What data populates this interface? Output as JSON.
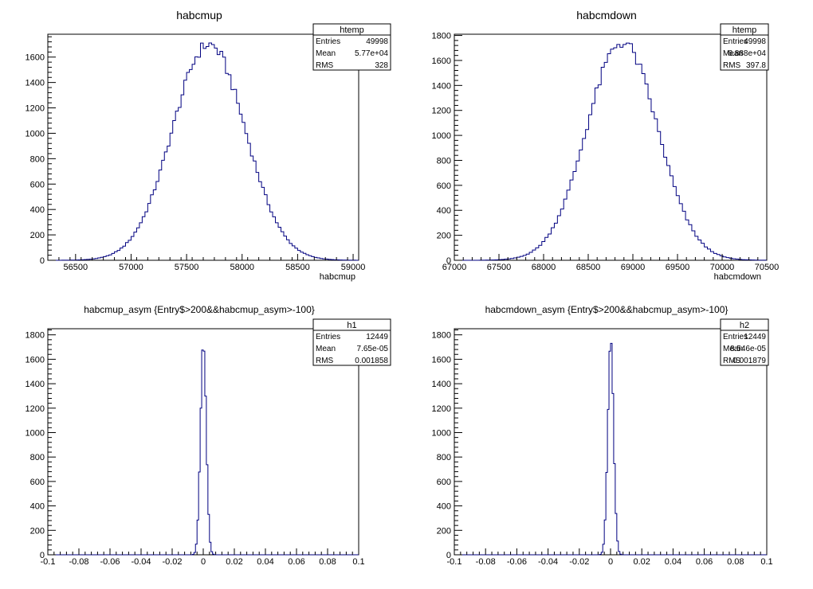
{
  "canvas": {
    "background": "#ffffff",
    "line_color": "#000080",
    "frame_color": "#000000"
  },
  "chart_data": [
    {
      "type": "histogram",
      "title": "habcmup",
      "xlabel": "habcmup",
      "ylabel": "",
      "xlim": [
        56250,
        59050
      ],
      "ylim": [
        0,
        1780
      ],
      "xticks": [
        56500,
        57000,
        57500,
        58000,
        58500,
        59000
      ],
      "xtick_labels": [
        "56500",
        "57000",
        "57500",
        "58000",
        "58500",
        "59000"
      ],
      "xminor_step": 100,
      "yticks": [
        0,
        200,
        400,
        600,
        800,
        1000,
        1200,
        1400,
        1600
      ],
      "ytick_labels": [
        "0",
        "200",
        "400",
        "600",
        "800",
        "1000",
        "1200",
        "1400",
        "1600"
      ],
      "yminor_step": 40,
      "bins": {
        "mean": 57700,
        "sigma": 328,
        "peak": 1700,
        "bin_width": 25
      },
      "stats": {
        "name": "htemp",
        "rows": [
          {
            "label": "Entries",
            "value": "49998"
          },
          {
            "label": "Mean",
            "value": "5.77e+04"
          },
          {
            "label": "RMS",
            "value": "328"
          }
        ]
      }
    },
    {
      "type": "histogram",
      "title": "habcmdown",
      "xlabel": "habcmdown",
      "ylabel": "",
      "xlim": [
        67000,
        70500
      ],
      "ylim": [
        0,
        1810
      ],
      "xticks": [
        67000,
        67500,
        68000,
        68500,
        69000,
        69500,
        70000,
        70500
      ],
      "xtick_labels": [
        "67000",
        "67500",
        "68000",
        "68500",
        "69000",
        "69500",
        "70000",
        "70500"
      ],
      "xminor_step": 100,
      "yticks": [
        0,
        200,
        400,
        600,
        800,
        1000,
        1200,
        1400,
        1600,
        1800
      ],
      "ytick_labels": [
        "0",
        "200",
        "400",
        "600",
        "800",
        "1000",
        "1200",
        "1400",
        "1600",
        "1800"
      ],
      "yminor_step": 40,
      "bins": {
        "mean": 68880,
        "sigma": 397.8,
        "peak": 1745,
        "bin_width": 35
      },
      "stats": {
        "name": "htemp",
        "rows": [
          {
            "label": "Entries",
            "value": "49998"
          },
          {
            "label": "Mean",
            "value": "6.888e+04"
          },
          {
            "label": "RMS",
            "value": "397.8"
          }
        ]
      }
    },
    {
      "type": "histogram",
      "title": "habcmup_asym {Entry$>200&&habcmup_asym>-100}",
      "xlabel": "",
      "ylabel": "",
      "xlim": [
        -0.1,
        0.1
      ],
      "ylim": [
        0,
        1850
      ],
      "xticks": [
        -0.1,
        -0.08,
        -0.06,
        -0.04,
        -0.02,
        0,
        0.02,
        0.04,
        0.06,
        0.08,
        0.1
      ],
      "xtick_labels": [
        "-0.1",
        "-0.08",
        "-0.06",
        "-0.04",
        "-0.02",
        "0",
        "0.02",
        "0.04",
        "0.06",
        "0.08",
        "0.1"
      ],
      "xminor_step": 0.004,
      "yticks": [
        0,
        200,
        400,
        600,
        800,
        1000,
        1200,
        1400,
        1600,
        1800
      ],
      "ytick_labels": [
        "0",
        "200",
        "400",
        "600",
        "800",
        "1000",
        "1200",
        "1400",
        "1600",
        "1800"
      ],
      "yminor_step": 40,
      "bins": {
        "mean": 7.65e-05,
        "sigma": 0.001858,
        "peak": 1760,
        "bin_width": 0.001
      },
      "stats": {
        "name": "h1",
        "rows": [
          {
            "label": "Entries",
            "value": "12449"
          },
          {
            "label": "Mean",
            "value": "7.65e-05"
          },
          {
            "label": "RMS",
            "value": "0.001858"
          }
        ]
      }
    },
    {
      "type": "histogram",
      "title": "habcmdown_asym {Entry$>200&&habcmup_asym>-100}",
      "xlabel": "",
      "ylabel": "",
      "xlim": [
        -0.1,
        0.1
      ],
      "ylim": [
        0,
        1850
      ],
      "xticks": [
        -0.1,
        -0.08,
        -0.06,
        -0.04,
        -0.02,
        0,
        0.02,
        0.04,
        0.06,
        0.08,
        0.1
      ],
      "xtick_labels": [
        "-0.1",
        "-0.08",
        "-0.06",
        "-0.04",
        "-0.02",
        "0",
        "0.02",
        "0.04",
        "0.06",
        "0.08",
        "0.1"
      ],
      "xminor_step": 0.004,
      "yticks": [
        0,
        200,
        400,
        600,
        800,
        1000,
        1200,
        1400,
        1600,
        1800
      ],
      "ytick_labels": [
        "0",
        "200",
        "400",
        "600",
        "800",
        "1000",
        "1200",
        "1400",
        "1600",
        "1800"
      ],
      "yminor_step": 40,
      "bins": {
        "mean": 8.546e-05,
        "sigma": 0.001879,
        "peak": 1740,
        "bin_width": 0.001
      },
      "stats": {
        "name": "h2",
        "rows": [
          {
            "label": "Entries",
            "value": "12449"
          },
          {
            "label": "Mean",
            "value": "8.546e-05"
          },
          {
            "label": "RMS",
            "value": "0.001879"
          }
        ]
      }
    }
  ]
}
